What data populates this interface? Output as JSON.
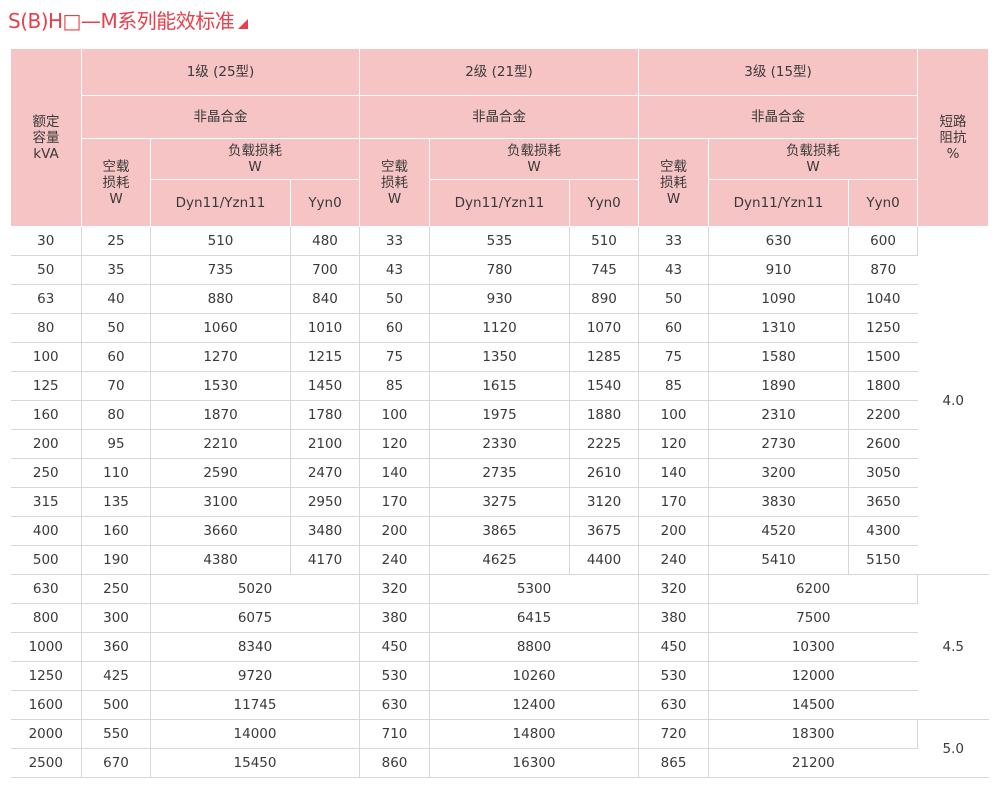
{
  "title": "S(B)H□—M系列能效标准",
  "header": {
    "rated_capacity": [
      "额定",
      "容量",
      "kVA"
    ],
    "grades": [
      "1级 (25型)",
      "2级 (21型)",
      "3级 (15型)"
    ],
    "material": "非晶合金",
    "no_load": [
      "空载",
      "损耗",
      "W"
    ],
    "load_loss": [
      "负载损耗",
      "W"
    ],
    "dyn": "Dyn11/Yzn11",
    "yyn": "Yyn0",
    "impedance": [
      "短路",
      "阻抗",
      "%"
    ]
  },
  "rows_a": [
    [
      "30",
      "25",
      "510",
      "480",
      "33",
      "535",
      "510",
      "33",
      "630",
      "600"
    ],
    [
      "50",
      "35",
      "735",
      "700",
      "43",
      "780",
      "745",
      "43",
      "910",
      "870"
    ],
    [
      "63",
      "40",
      "880",
      "840",
      "50",
      "930",
      "890",
      "50",
      "1090",
      "1040"
    ],
    [
      "80",
      "50",
      "1060",
      "1010",
      "60",
      "1120",
      "1070",
      "60",
      "1310",
      "1250"
    ],
    [
      "100",
      "60",
      "1270",
      "1215",
      "75",
      "1350",
      "1285",
      "75",
      "1580",
      "1500"
    ],
    [
      "125",
      "70",
      "1530",
      "1450",
      "85",
      "1615",
      "1540",
      "85",
      "1890",
      "1800"
    ],
    [
      "160",
      "80",
      "1870",
      "1780",
      "100",
      "1975",
      "1880",
      "100",
      "2310",
      "2200"
    ],
    [
      "200",
      "95",
      "2210",
      "2100",
      "120",
      "2330",
      "2225",
      "120",
      "2730",
      "2600"
    ],
    [
      "250",
      "110",
      "2590",
      "2470",
      "140",
      "2735",
      "2610",
      "140",
      "3200",
      "3050"
    ],
    [
      "315",
      "135",
      "3100",
      "2950",
      "170",
      "3275",
      "3120",
      "170",
      "3830",
      "3650"
    ],
    [
      "400",
      "160",
      "3660",
      "3480",
      "200",
      "3865",
      "3675",
      "200",
      "4520",
      "4300"
    ],
    [
      "500",
      "190",
      "4380",
      "4170",
      "240",
      "4625",
      "4400",
      "240",
      "5410",
      "5150"
    ]
  ],
  "rows_b": [
    [
      "630",
      "250",
      "5020",
      "320",
      "5300",
      "320",
      "6200"
    ],
    [
      "800",
      "300",
      "6075",
      "380",
      "6415",
      "380",
      "7500"
    ],
    [
      "1000",
      "360",
      "8340",
      "450",
      "8800",
      "450",
      "10300"
    ],
    [
      "1250",
      "425",
      "9720",
      "530",
      "10260",
      "530",
      "12000"
    ],
    [
      "1600",
      "500",
      "11745",
      "630",
      "12400",
      "630",
      "14500"
    ],
    [
      "2000",
      "550",
      "14000",
      "710",
      "14800",
      "720",
      "18300"
    ],
    [
      "2500",
      "670",
      "15450",
      "860",
      "16300",
      "865",
      "21200"
    ]
  ],
  "impedance_values": [
    "4.0",
    "4.5",
    "5.0"
  ]
}
